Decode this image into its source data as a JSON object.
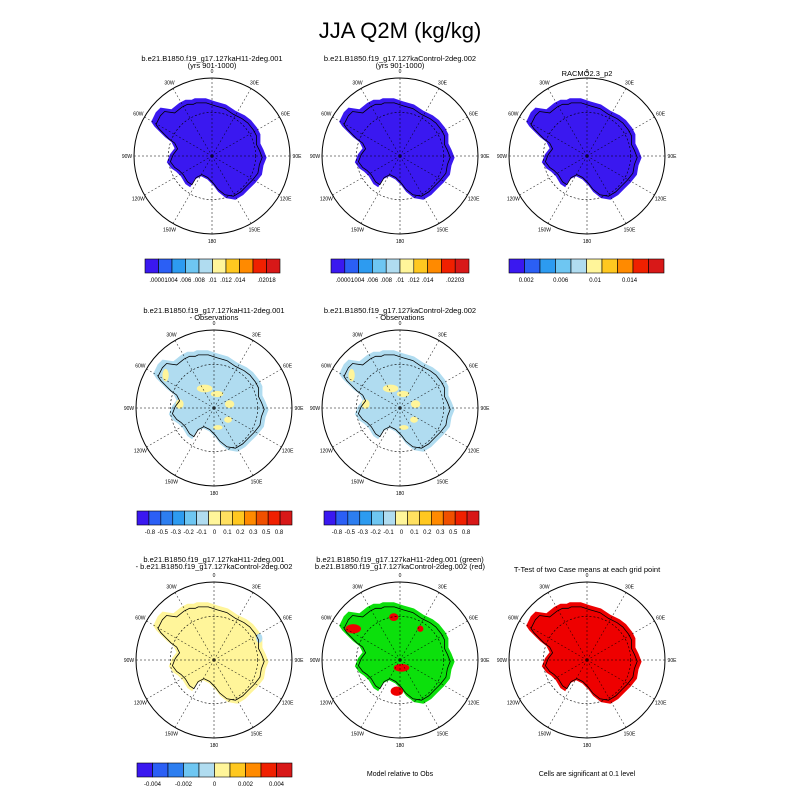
{
  "title": "JJA Q2M (kg/kg)",
  "colors": {
    "ice_blue": "#3a18f0",
    "diff_light_blue": "#b0dcf0",
    "diff_yellow": "#fff59a",
    "green": "#0ce00c",
    "red": "#ee0000",
    "land_edge": "#000000"
  },
  "lon_labels": [
    "0",
    "30E",
    "60E",
    "90E",
    "120E",
    "150E",
    "180",
    "150W",
    "120W",
    "90W",
    "60W",
    "30W"
  ],
  "panels": [
    {
      "id": "p1",
      "title": [
        "b.e21.B1850.f19_g17.127kaH11-2deg.001",
        "(yrs 901-1000)"
      ],
      "fill": "ice",
      "colorbar": "cb1"
    },
    {
      "id": "p2",
      "title": [
        "b.e21.B1850.f19_g17.127kaControl-2deg.002",
        "(yrs 901-1000)"
      ],
      "fill": "ice",
      "colorbar": "cb2"
    },
    {
      "id": "p3",
      "title": [
        "RACMO2.3_p2"
      ],
      "fill": "ice",
      "colorbar": "cb3"
    },
    {
      "id": "p4",
      "title": [
        "b.e21.B1850.f19_g17.127kaH11-2deg.001",
        "- Observations"
      ],
      "fill": "obs",
      "colorbar": "cb4"
    },
    {
      "id": "p5",
      "title": [
        "b.e21.B1850.f19_g17.127kaControl-2deg.002",
        "- Observations"
      ],
      "fill": "obs",
      "colorbar": "cb5"
    },
    {
      "id": "p6",
      "title": [
        "b.e21.B1850.f19_g17.127kaH11-2deg.001",
        "- b.e21.B1850.f19_g17.127kaControl-2deg.002"
      ],
      "fill": "yellow",
      "colorbar": "cb6"
    },
    {
      "id": "p7",
      "title": [
        "b.e21.B1850.f19_g17.127kaH11-2deg.001 (green)",
        "b.e21.B1850.f19_g17.127kaControl-2deg.002 (red)"
      ],
      "fill": "greenred",
      "footer": "Model relative to Obs"
    },
    {
      "id": "p8",
      "title": [
        "T-Test of two Case means at each grid point"
      ],
      "fill": "red",
      "footer": "Cells are significant at 0.1 level"
    }
  ],
  "colorbars": {
    "cb1": {
      "colors": [
        "#3a18f0",
        "#2b5ff5",
        "#2d9bf0",
        "#6ec6f2",
        "#b0dcf0",
        "#fff59a",
        "#ffc820",
        "#ff8a00",
        "#f02000",
        "#d81818"
      ],
      "labels": [
        ".00001",
        ".004",
        ".006",
        ".008",
        ".01",
        ".012",
        ".014",
        "",
        ".02018"
      ]
    },
    "cb2": {
      "colors": [
        "#3a18f0",
        "#2b5ff5",
        "#2d9bf0",
        "#6ec6f2",
        "#b0dcf0",
        "#fff59a",
        "#ffc820",
        "#ff8a00",
        "#f02000",
        "#d81818"
      ],
      "labels": [
        ".00001",
        ".004",
        ".006",
        ".008",
        ".01",
        ".012",
        ".014",
        "",
        ".02203"
      ]
    },
    "cb3": {
      "colors": [
        "#3a18f0",
        "#2b5ff5",
        "#2d9bf0",
        "#6ec6f2",
        "#b0dcf0",
        "#fff59a",
        "#ffc820",
        "#ff8a00",
        "#f02000",
        "#d81818"
      ],
      "labels": [
        "0.002",
        "",
        "0.006",
        "",
        "0.01",
        "",
        "0.014",
        ""
      ]
    },
    "cb4": {
      "colors": [
        "#3a18f0",
        "#2b5ff5",
        "#2d7ef0",
        "#2d9bf0",
        "#6ec6f2",
        "#b0dcf0",
        "#fff59a",
        "#ffe060",
        "#ffc820",
        "#ff8a00",
        "#f05000",
        "#f02000",
        "#d81818"
      ],
      "labels": [
        "-0.8",
        "-0.5",
        "-0.3",
        "-0.2",
        "-0.1",
        "0",
        "0.1",
        "0.2",
        "0.3",
        "0.5",
        "0.8"
      ]
    },
    "cb5": {
      "colors": [
        "#3a18f0",
        "#2b5ff5",
        "#2d7ef0",
        "#2d9bf0",
        "#6ec6f2",
        "#b0dcf0",
        "#fff59a",
        "#ffe060",
        "#ffc820",
        "#ff8a00",
        "#f05000",
        "#f02000",
        "#d81818"
      ],
      "labels": [
        "-0.8",
        "-0.5",
        "-0.3",
        "-0.2",
        "-0.1",
        "0",
        "0.1",
        "0.2",
        "0.3",
        "0.5",
        "0.8"
      ]
    },
    "cb6": {
      "colors": [
        "#3a18f0",
        "#2b5ff5",
        "#2d7ef0",
        "#6ec6f2",
        "#b0dcf0",
        "#fff59a",
        "#ffc820",
        "#ff8a00",
        "#f02000",
        "#d81818"
      ],
      "labels": [
        "-0.004",
        "",
        "-0.002",
        "",
        "0",
        "",
        "0.002",
        "",
        "0.004"
      ]
    }
  },
  "chart_data": {
    "type": "heatmap",
    "title": "JJA Q2M (kg/kg)",
    "projection": "south polar stereographic",
    "longitude_labels": [
      "0",
      "30E",
      "60E",
      "90E",
      "120E",
      "150E",
      "180",
      "150W",
      "120W",
      "90W",
      "60W",
      "30W"
    ],
    "maps": [
      {
        "title": "b.e21.B1850.f19_g17.127kaH11-2deg.001 (yrs 901-1000)",
        "colorbar_labels": [
          ".00001",
          ".004",
          ".006",
          ".008",
          ".01",
          ".012",
          ".014",
          ".02018"
        ],
        "dominant_value_range": [
          1e-05,
          0.004
        ]
      },
      {
        "title": "b.e21.B1850.f19_g17.127kaControl-2deg.002 (yrs 901-1000)",
        "colorbar_labels": [
          ".00001",
          ".004",
          ".006",
          ".008",
          ".01",
          ".012",
          ".014",
          ".02203"
        ],
        "dominant_value_range": [
          1e-05,
          0.004
        ]
      },
      {
        "title": "RACMO2.3_p2",
        "colorbar_labels": [
          "0.002",
          "0.006",
          "0.01",
          "0.014"
        ],
        "dominant_value_range": [
          0,
          0.002
        ]
      },
      {
        "title": "b.e21.B1850.f19_g17.127kaH11-2deg.001 - Observations",
        "colorbar_labels": [
          "-0.8",
          "-0.5",
          "-0.3",
          "-0.2",
          "-0.1",
          "0",
          "0.1",
          "0.2",
          "0.3",
          "0.5",
          "0.8"
        ],
        "dominant_value_range": [
          -0.1,
          0
        ]
      },
      {
        "title": "b.e21.B1850.f19_g17.127kaControl-2deg.002 - Observations",
        "colorbar_labels": [
          "-0.8",
          "-0.5",
          "-0.3",
          "-0.2",
          "-0.1",
          "0",
          "0.1",
          "0.2",
          "0.3",
          "0.5",
          "0.8"
        ],
        "dominant_value_range": [
          -0.1,
          0
        ]
      },
      {
        "title": "b.e21.B1850.f19_g17.127kaH11-2deg.001 - b.e21.B1850.f19_g17.127kaControl-2deg.002",
        "colorbar_labels": [
          "-0.004",
          "-0.002",
          "0",
          "0.002",
          "0.004"
        ],
        "dominant_value_range": [
          0,
          0.001
        ]
      },
      {
        "title": "b.e21.B1850.f19_g17.127kaH11-2deg.001 (green) b.e21.B1850.f19_g17.127kaControl-2deg.002 (red)",
        "note": "Model relative to Obs",
        "categories": [
          "green",
          "red"
        ]
      },
      {
        "title": "T-Test of two Case means at each grid point",
        "note": "Cells are significant at 0.1 level",
        "categories": [
          "significant"
        ]
      }
    ]
  }
}
